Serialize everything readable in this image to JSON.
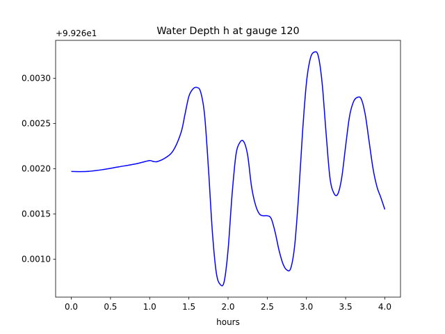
{
  "chart_data": {
    "type": "line",
    "title": "Water Depth h at gauge 120",
    "xlabel": "hours",
    "ylabel": "",
    "y_offset_text": "+9.926e1",
    "xlim": [
      -0.2,
      4.2
    ],
    "ylim": [
      0.00058,
      0.00342
    ],
    "x_ticks": [
      0.0,
      0.5,
      1.0,
      1.5,
      2.0,
      2.5,
      3.0,
      3.5,
      4.0
    ],
    "x_tick_labels": [
      "0.0",
      "0.5",
      "1.0",
      "1.5",
      "2.0",
      "2.5",
      "3.0",
      "3.5",
      "4.0"
    ],
    "y_ticks": [
      0.001,
      0.0015,
      0.002,
      0.0025,
      0.003
    ],
    "y_tick_labels": [
      "0.0010",
      "0.0015",
      "0.0020",
      "0.0025",
      "0.0030"
    ],
    "grid": false,
    "line_color": "#0000ff",
    "series": [
      {
        "x": [
          0.0,
          0.2,
          0.4,
          0.6,
          0.8,
          0.9,
          1.0,
          1.05,
          1.1,
          1.2,
          1.3,
          1.4,
          1.45,
          1.5,
          1.55,
          1.6,
          1.65,
          1.7,
          1.75,
          1.8,
          1.85,
          1.9,
          1.95,
          2.0,
          2.05,
          2.1,
          2.15,
          2.2,
          2.25,
          2.3,
          2.35,
          2.4,
          2.45,
          2.5,
          2.55,
          2.6,
          2.65,
          2.7,
          2.75,
          2.8,
          2.85,
          2.9,
          2.95,
          3.0,
          3.05,
          3.1,
          3.15,
          3.2,
          3.25,
          3.3,
          3.35,
          3.4,
          3.45,
          3.5,
          3.55,
          3.6,
          3.65,
          3.7,
          3.75,
          3.8,
          3.85,
          3.9,
          3.95,
          4.0
        ],
        "y": [
          0.00197,
          0.00197,
          0.00199,
          0.00202,
          0.00205,
          0.00207,
          0.00209,
          0.00208,
          0.00208,
          0.00212,
          0.0022,
          0.0024,
          0.0026,
          0.0028,
          0.00288,
          0.0029,
          0.00285,
          0.0026,
          0.002,
          0.0013,
          0.00085,
          0.00072,
          0.00075,
          0.0011,
          0.0017,
          0.00215,
          0.00229,
          0.0023,
          0.00215,
          0.0018,
          0.0016,
          0.0015,
          0.00148,
          0.00148,
          0.00145,
          0.0013,
          0.0011,
          0.00095,
          0.00088,
          0.0009,
          0.00115,
          0.0017,
          0.0024,
          0.00295,
          0.00322,
          0.00329,
          0.00325,
          0.00295,
          0.0024,
          0.0019,
          0.00173,
          0.00172,
          0.0019,
          0.00225,
          0.00258,
          0.00274,
          0.00279,
          0.00277,
          0.0026,
          0.0023,
          0.002,
          0.0018,
          0.00168,
          0.00155
        ]
      }
    ]
  }
}
